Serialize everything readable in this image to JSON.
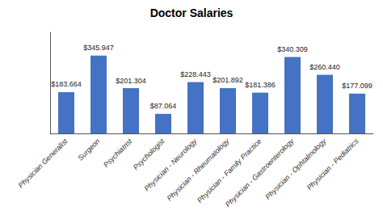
{
  "chart_data": {
    "type": "bar",
    "title": "Doctor Salaries",
    "categories": [
      "Physician Generalist",
      "Surgeon",
      "Psychiatrist",
      "Psychologist",
      "Physician - Neurology",
      "Physician - Rheumatology",
      "Physician - Family Practice",
      "Physician - Gastroenterology",
      "Physician - Ophtalmology",
      "Physician - Pediatrics"
    ],
    "values": [
      183664,
      345947,
      201304,
      87064,
      228443,
      201892,
      181386,
      340309,
      260440,
      177099
    ],
    "value_labels": [
      "$183.664",
      "$345.947",
      "$201.304",
      "$87.064",
      "$228.443",
      "$201.892",
      "$181.386",
      "$340.309",
      "$260.440",
      "$177.099"
    ],
    "data_labels": true,
    "color": "#4472C4",
    "ylim": [
      0,
      449731.1
    ],
    "grid": false,
    "tick_labels": "x"
  }
}
